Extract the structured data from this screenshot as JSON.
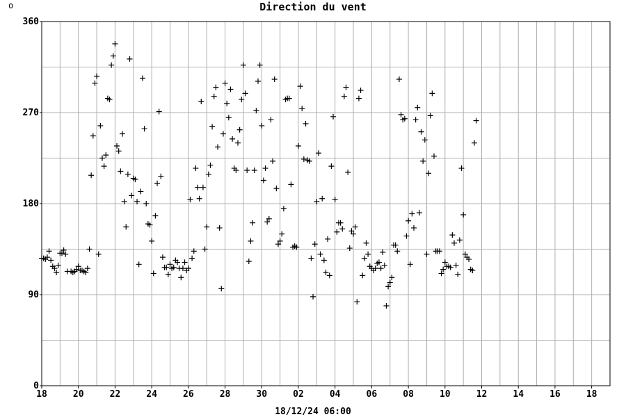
{
  "corner_mark": "o",
  "chart_data": {
    "type": "scatter",
    "title": "Direction du vent",
    "xlabel": "",
    "ylabel": "",
    "footer_label": "18/12/24 06:00",
    "x_unit": "day offset from first tick",
    "xlim": [
      0,
      31
    ],
    "ylim": [
      0,
      360
    ],
    "y_ticks": [
      0,
      90,
      180,
      270,
      360
    ],
    "y_gridlines": [
      0,
      45,
      90,
      135,
      180,
      225,
      270,
      315,
      360
    ],
    "x_ticks": [
      {
        "x": 0,
        "label": "18"
      },
      {
        "x": 2,
        "label": "20"
      },
      {
        "x": 4,
        "label": "22"
      },
      {
        "x": 6,
        "label": "24"
      },
      {
        "x": 8,
        "label": "26"
      },
      {
        "x": 10,
        "label": "28"
      },
      {
        "x": 12,
        "label": "30"
      },
      {
        "x": 14,
        "label": "02"
      },
      {
        "x": 16,
        "label": "04"
      },
      {
        "x": 18,
        "label": "06"
      },
      {
        "x": 20,
        "label": "08"
      },
      {
        "x": 22,
        "label": "10"
      },
      {
        "x": 24,
        "label": "12"
      },
      {
        "x": 26,
        "label": "14"
      },
      {
        "x": 28,
        "label": "16"
      },
      {
        "x": 30,
        "label": "18"
      }
    ],
    "grid": true,
    "marker": "+",
    "colors": {
      "grid": "#b0b0b0",
      "marker": "#000000",
      "frame": "#000000"
    },
    "points": [
      [
        0.0,
        126
      ],
      [
        0.1,
        126
      ],
      [
        0.2,
        125
      ],
      [
        0.3,
        127
      ],
      [
        0.4,
        133
      ],
      [
        0.5,
        124
      ],
      [
        0.6,
        118
      ],
      [
        0.7,
        116
      ],
      [
        0.8,
        112
      ],
      [
        0.9,
        119
      ],
      [
        1.0,
        131
      ],
      [
        1.1,
        131
      ],
      [
        1.2,
        134
      ],
      [
        1.3,
        130
      ],
      [
        1.4,
        113
      ],
      [
        1.6,
        113
      ],
      [
        1.7,
        112
      ],
      [
        1.8,
        113
      ],
      [
        1.9,
        115
      ],
      [
        2.0,
        118
      ],
      [
        2.1,
        114
      ],
      [
        2.2,
        114
      ],
      [
        2.3,
        113
      ],
      [
        2.4,
        112
      ],
      [
        2.5,
        116
      ],
      [
        2.6,
        135
      ],
      [
        2.7,
        208
      ],
      [
        2.8,
        247
      ],
      [
        2.9,
        299
      ],
      [
        3.0,
        306
      ],
      [
        3.1,
        130
      ],
      [
        3.2,
        257
      ],
      [
        3.3,
        225
      ],
      [
        3.4,
        217
      ],
      [
        3.5,
        228
      ],
      [
        3.6,
        284
      ],
      [
        3.7,
        283
      ],
      [
        3.8,
        317
      ],
      [
        3.9,
        326
      ],
      [
        4.0,
        338
      ],
      [
        4.1,
        237
      ],
      [
        4.2,
        232
      ],
      [
        4.3,
        212
      ],
      [
        4.4,
        249
      ],
      [
        4.5,
        182
      ],
      [
        4.6,
        157
      ],
      [
        4.7,
        209
      ],
      [
        4.8,
        323
      ],
      [
        4.9,
        188
      ],
      [
        5.0,
        205
      ],
      [
        5.1,
        204
      ],
      [
        5.2,
        182
      ],
      [
        5.3,
        120
      ],
      [
        5.4,
        192
      ],
      [
        5.5,
        304
      ],
      [
        5.6,
        254
      ],
      [
        5.7,
        180
      ],
      [
        5.8,
        160
      ],
      [
        5.9,
        159
      ],
      [
        6.0,
        143
      ],
      [
        6.1,
        111
      ],
      [
        6.2,
        168
      ],
      [
        6.3,
        200
      ],
      [
        6.4,
        271
      ],
      [
        6.5,
        207
      ],
      [
        6.6,
        127
      ],
      [
        6.7,
        117
      ],
      [
        6.8,
        117
      ],
      [
        6.9,
        110
      ],
      [
        7.0,
        120
      ],
      [
        7.1,
        116
      ],
      [
        7.2,
        117
      ],
      [
        7.3,
        124
      ],
      [
        7.4,
        122
      ],
      [
        7.5,
        116
      ],
      [
        7.6,
        107
      ],
      [
        7.7,
        116
      ],
      [
        7.8,
        122
      ],
      [
        7.9,
        114
      ],
      [
        8.0,
        116
      ],
      [
        8.1,
        184
      ],
      [
        8.2,
        126
      ],
      [
        8.3,
        133
      ],
      [
        8.4,
        215
      ],
      [
        8.5,
        196
      ],
      [
        8.6,
        185
      ],
      [
        8.7,
        281
      ],
      [
        8.8,
        196
      ],
      [
        8.9,
        135
      ],
      [
        9.0,
        157
      ],
      [
        9.1,
        209
      ],
      [
        9.2,
        218
      ],
      [
        9.3,
        256
      ],
      [
        9.4,
        286
      ],
      [
        9.5,
        295
      ],
      [
        9.6,
        236
      ],
      [
        9.7,
        156
      ],
      [
        9.8,
        96
      ],
      [
        9.9,
        249
      ],
      [
        10.0,
        299
      ],
      [
        10.1,
        279
      ],
      [
        10.2,
        265
      ],
      [
        10.3,
        293
      ],
      [
        10.4,
        244
      ],
      [
        10.5,
        215
      ],
      [
        10.6,
        213
      ],
      [
        10.7,
        240
      ],
      [
        10.8,
        253
      ],
      [
        10.9,
        283
      ],
      [
        11.0,
        317
      ],
      [
        11.1,
        289
      ],
      [
        11.2,
        213
      ],
      [
        11.3,
        123
      ],
      [
        11.4,
        143
      ],
      [
        11.5,
        161
      ],
      [
        11.6,
        213
      ],
      [
        11.7,
        272
      ],
      [
        11.8,
        301
      ],
      [
        11.9,
        317
      ],
      [
        12.0,
        257
      ],
      [
        12.1,
        203
      ],
      [
        12.2,
        215
      ],
      [
        12.3,
        162
      ],
      [
        12.4,
        165
      ],
      [
        12.5,
        263
      ],
      [
        12.6,
        222
      ],
      [
        12.7,
        303
      ],
      [
        12.8,
        195
      ],
      [
        12.9,
        140
      ],
      [
        13.0,
        143
      ],
      [
        13.1,
        150
      ],
      [
        13.2,
        175
      ],
      [
        13.3,
        283
      ],
      [
        13.4,
        284
      ],
      [
        13.5,
        284
      ],
      [
        13.6,
        199
      ],
      [
        13.7,
        137
      ],
      [
        13.8,
        138
      ],
      [
        13.9,
        137
      ],
      [
        14.0,
        237
      ],
      [
        14.1,
        296
      ],
      [
        14.2,
        274
      ],
      [
        14.3,
        224
      ],
      [
        14.4,
        259
      ],
      [
        14.5,
        223
      ],
      [
        14.6,
        222
      ],
      [
        14.7,
        126
      ],
      [
        14.8,
        88
      ],
      [
        14.9,
        140
      ],
      [
        15.0,
        182
      ],
      [
        15.1,
        230
      ],
      [
        15.2,
        130
      ],
      [
        15.3,
        185
      ],
      [
        15.4,
        124
      ],
      [
        15.5,
        112
      ],
      [
        15.6,
        145
      ],
      [
        15.7,
        109
      ],
      [
        15.8,
        217
      ],
      [
        15.9,
        266
      ],
      [
        16.0,
        184
      ],
      [
        16.1,
        152
      ],
      [
        16.2,
        161
      ],
      [
        16.3,
        161
      ],
      [
        16.4,
        155
      ],
      [
        16.5,
        286
      ],
      [
        16.6,
        295
      ],
      [
        16.7,
        211
      ],
      [
        16.8,
        136
      ],
      [
        16.9,
        153
      ],
      [
        17.0,
        150
      ],
      [
        17.1,
        157
      ],
      [
        17.2,
        83
      ],
      [
        17.3,
        284
      ],
      [
        17.4,
        292
      ],
      [
        17.5,
        109
      ],
      [
        17.6,
        126
      ],
      [
        17.7,
        141
      ],
      [
        17.8,
        130
      ],
      [
        17.9,
        118
      ],
      [
        18.0,
        116
      ],
      [
        18.1,
        114
      ],
      [
        18.2,
        116
      ],
      [
        18.3,
        121
      ],
      [
        18.4,
        122
      ],
      [
        18.5,
        116
      ],
      [
        18.6,
        132
      ],
      [
        18.7,
        119
      ],
      [
        18.8,
        79
      ],
      [
        18.9,
        98
      ],
      [
        19.0,
        102
      ],
      [
        19.1,
        107
      ],
      [
        19.2,
        139
      ],
      [
        19.3,
        139
      ],
      [
        19.4,
        133
      ],
      [
        19.5,
        303
      ],
      [
        19.6,
        268
      ],
      [
        19.7,
        263
      ],
      [
        19.8,
        264
      ],
      [
        19.9,
        148
      ],
      [
        20.0,
        163
      ],
      [
        20.1,
        120
      ],
      [
        20.2,
        170
      ],
      [
        20.3,
        156
      ],
      [
        20.4,
        263
      ],
      [
        20.5,
        275
      ],
      [
        20.6,
        171
      ],
      [
        20.7,
        251
      ],
      [
        20.8,
        222
      ],
      [
        20.9,
        243
      ],
      [
        21.0,
        130
      ],
      [
        21.1,
        210
      ],
      [
        21.2,
        267
      ],
      [
        21.3,
        289
      ],
      [
        21.4,
        227
      ],
      [
        21.5,
        133
      ],
      [
        21.6,
        133
      ],
      [
        21.7,
        133
      ],
      [
        21.8,
        111
      ],
      [
        21.9,
        115
      ],
      [
        22.0,
        122
      ],
      [
        22.1,
        118
      ],
      [
        22.2,
        118
      ],
      [
        22.3,
        117
      ],
      [
        22.4,
        149
      ],
      [
        22.5,
        141
      ],
      [
        22.6,
        119
      ],
      [
        22.7,
        110
      ],
      [
        22.8,
        144
      ],
      [
        22.9,
        215
      ],
      [
        23.0,
        169
      ],
      [
        23.1,
        130
      ],
      [
        23.2,
        127
      ],
      [
        23.3,
        125
      ],
      [
        23.4,
        115
      ],
      [
        23.5,
        114
      ],
      [
        23.6,
        240
      ],
      [
        23.7,
        262
      ]
    ]
  }
}
